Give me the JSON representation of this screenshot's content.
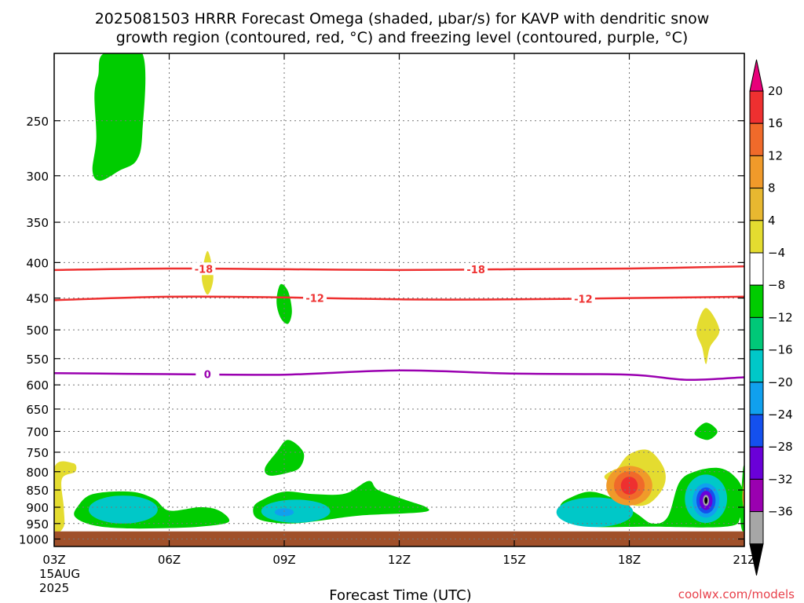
{
  "chart_data": {
    "type": "contour",
    "title_line1": "2025081503 HRRR Forecast Omega (shaded, µbar/s) for KAVP with dendritic snow",
    "title_line2": "growth region (contoured, red, °C) and freezing level (contoured, purple, °C)",
    "xlabel": "Forecast Time (UTC)",
    "credit": "coolwx.com/models",
    "x_ticks": [
      "03Z",
      "06Z",
      "09Z",
      "12Z",
      "15Z",
      "18Z",
      "21Z"
    ],
    "x_hours": [
      3,
      6,
      9,
      12,
      15,
      18,
      21
    ],
    "x_range": [
      3,
      21
    ],
    "date_line1": "15AUG",
    "date_line2": "2025",
    "y_ticks": [
      250,
      300,
      350,
      400,
      450,
      500,
      550,
      600,
      650,
      700,
      750,
      800,
      850,
      900,
      950,
      1000
    ],
    "y_range": [
      200,
      1025
    ],
    "y_scale": "log-pressure",
    "grid": true,
    "colorbar": {
      "labels": [
        "20",
        "16",
        "12",
        "8",
        "4",
        "−4",
        "−8",
        "−12",
        "−16",
        "−20",
        "−24",
        "−28",
        "−32",
        "−36"
      ],
      "colors": [
        "#e8007a",
        "#ee3030",
        "#f06a2a",
        "#f09a2a",
        "#e8b830",
        "#e4dc30",
        "#ffffff",
        "#00cc00",
        "#00c878",
        "#00c8c8",
        "#10a0ee",
        "#1450ee",
        "#6a00d8",
        "#9a00b0",
        "#a6a6a6",
        "#000000"
      ]
    },
    "isotherms": [
      {
        "label": "-18",
        "color": "#ee3030",
        "points": [
          [
            3,
            410
          ],
          [
            6,
            408
          ],
          [
            9,
            409
          ],
          [
            12,
            410
          ],
          [
            15,
            409
          ],
          [
            18,
            408
          ],
          [
            21,
            405
          ]
        ],
        "label_hours": [
          6.9,
          14.0
        ]
      },
      {
        "label": "-12",
        "color": "#ee3030",
        "points": [
          [
            3,
            453
          ],
          [
            6,
            448
          ],
          [
            9,
            449
          ],
          [
            12,
            452
          ],
          [
            15,
            452
          ],
          [
            18,
            450
          ],
          [
            21,
            448
          ]
        ],
        "label_hours": [
          9.8,
          16.8
        ]
      },
      {
        "label": "0",
        "color": "#9a00b0",
        "points": [
          [
            3,
            577
          ],
          [
            6,
            579
          ],
          [
            9,
            580
          ],
          [
            12,
            572
          ],
          [
            15,
            578
          ],
          [
            18,
            580
          ],
          [
            19.5,
            590
          ],
          [
            21,
            585
          ]
        ],
        "label_hours": [
          7.0
        ]
      }
    ],
    "omega_regions": [
      {
        "name": "green-upper",
        "color": "#00cc00",
        "points": [
          [
            4.3,
            200
          ],
          [
            5.3,
            200
          ],
          [
            5.3,
            260
          ],
          [
            5.15,
            285
          ],
          [
            4.7,
            295
          ],
          [
            4.2,
            305
          ],
          [
            4.0,
            295
          ],
          [
            4.1,
            265
          ],
          [
            4.05,
            230
          ],
          [
            4.15,
            215
          ]
        ]
      },
      {
        "name": "yellow-400",
        "color": "#e4dc30",
        "points": [
          [
            7.0,
            385
          ],
          [
            7.15,
            420
          ],
          [
            7.0,
            445
          ],
          [
            6.85,
            420
          ]
        ]
      },
      {
        "name": "green-450",
        "color": "#00cc00",
        "points": [
          [
            8.9,
            430
          ],
          [
            9.1,
            440
          ],
          [
            9.2,
            470
          ],
          [
            9.1,
            490
          ],
          [
            8.9,
            480
          ],
          [
            8.8,
            455
          ]
        ]
      },
      {
        "name": "yellow-500",
        "color": "#e4dc30",
        "points": [
          [
            20.0,
            465
          ],
          [
            20.35,
            500
          ],
          [
            20.1,
            530
          ],
          [
            20.0,
            560
          ],
          [
            19.9,
            530
          ],
          [
            19.75,
            500
          ]
        ]
      },
      {
        "name": "green-700",
        "color": "#00cc00",
        "points": [
          [
            20.0,
            680
          ],
          [
            20.3,
            700
          ],
          [
            20.05,
            720
          ],
          [
            19.7,
            705
          ]
        ]
      },
      {
        "name": "green-760",
        "color": "#00cc00",
        "points": [
          [
            8.5,
            790
          ],
          [
            8.8,
            750
          ],
          [
            9.1,
            720
          ],
          [
            9.5,
            750
          ],
          [
            9.4,
            790
          ],
          [
            9.0,
            805
          ],
          [
            8.6,
            810
          ]
        ]
      },
      {
        "name": "yellow-left",
        "color": "#e4dc30",
        "points": [
          [
            3,
            790
          ],
          [
            3.5,
            778
          ],
          [
            3.55,
            800
          ],
          [
            3.2,
            820
          ],
          [
            3.25,
            900
          ],
          [
            3.25,
            960
          ],
          [
            3,
            965
          ]
        ]
      },
      {
        "name": "green-left",
        "color": "#00cc00",
        "points": [
          [
            3.6,
            900
          ],
          [
            4.0,
            862
          ],
          [
            5.0,
            855
          ],
          [
            5.6,
            875
          ],
          [
            6.0,
            910
          ],
          [
            6.8,
            900
          ],
          [
            7.3,
            910
          ],
          [
            7.55,
            945
          ],
          [
            6.8,
            960
          ],
          [
            5.8,
            965
          ],
          [
            4.8,
            965
          ],
          [
            4.0,
            955
          ],
          [
            3.55,
            930
          ]
        ]
      },
      {
        "name": "green-9z",
        "color": "#00cc00",
        "points": [
          [
            8.2,
            900
          ],
          [
            8.4,
            880
          ],
          [
            9.0,
            855
          ],
          [
            9.8,
            862
          ],
          [
            10.6,
            860
          ],
          [
            11.2,
            825
          ],
          [
            11.45,
            850
          ],
          [
            12.2,
            880
          ],
          [
            12.7,
            900
          ],
          [
            12.6,
            915
          ],
          [
            11.0,
            925
          ],
          [
            10.0,
            940
          ],
          [
            9.2,
            950
          ],
          [
            8.6,
            945
          ],
          [
            8.25,
            930
          ]
        ]
      },
      {
        "name": "green-right",
        "color": "#00cc00",
        "points": [
          [
            16.2,
            895
          ],
          [
            16.5,
            870
          ],
          [
            17.0,
            855
          ],
          [
            17.6,
            875
          ],
          [
            18.2,
            920
          ],
          [
            18.6,
            950
          ],
          [
            19.0,
            930
          ],
          [
            19.3,
            830
          ],
          [
            19.7,
            800
          ],
          [
            20.3,
            790
          ],
          [
            20.7,
            808
          ],
          [
            20.95,
            850
          ],
          [
            20.9,
            930
          ],
          [
            20.5,
            960
          ],
          [
            18.5,
            960
          ],
          [
            17.0,
            960
          ],
          [
            16.3,
            940
          ]
        ]
      },
      {
        "name": "yellow-18z",
        "color": "#e4dc30",
        "points": [
          [
            17.7,
            790
          ],
          [
            18.0,
            755
          ],
          [
            18.5,
            745
          ],
          [
            18.9,
            790
          ],
          [
            18.9,
            840
          ],
          [
            18.5,
            890
          ],
          [
            18.0,
            890
          ],
          [
            17.7,
            845
          ],
          [
            17.35,
            815
          ],
          [
            17.6,
            795
          ]
        ]
      },
      {
        "name": "green-edge",
        "color": "#00cc00",
        "points": [
          [
            20.95,
            810
          ],
          [
            21,
            795
          ],
          [
            21,
            965
          ],
          [
            20.9,
            940
          ]
        ]
      },
      {
        "name": "yellow-edge",
        "color": "#e4dc30",
        "points": [
          [
            21,
            815
          ],
          [
            21,
            905
          ],
          [
            20.95,
            870
          ]
        ]
      }
    ],
    "omega_cores": [
      {
        "name": "teal-left",
        "color": "#00c8c8",
        "cx": 4.8,
        "cp": 907,
        "rx": 0.9,
        "rp": 42
      },
      {
        "name": "teal-9z",
        "color": "#00c8c8",
        "cx": 9.3,
        "cp": 912,
        "rx": 0.9,
        "rp": 35
      },
      {
        "name": "blue-9z",
        "color": "#10a0ee",
        "cx": 9.0,
        "cp": 915,
        "rx": 0.25,
        "rp": 12
      },
      {
        "name": "teal-16z",
        "color": "#00c8c8",
        "cx": 17.1,
        "cp": 915,
        "rx": 1.0,
        "rp": 45
      },
      {
        "name": "orange-18z",
        "color": "#f09a2a",
        "cx": 18.0,
        "cp": 838,
        "rx": 0.6,
        "rp": 55
      },
      {
        "name": "deep-orange-18z",
        "color": "#f06a2a",
        "cx": 18.0,
        "cp": 838,
        "rx": 0.4,
        "rp": 40
      },
      {
        "name": "red-18z",
        "color": "#ee3030",
        "cx": 18.0,
        "cp": 838,
        "rx": 0.22,
        "rp": 25
      },
      {
        "name": "teal-20z",
        "color": "#00c8c8",
        "cx": 20.0,
        "cp": 875,
        "rx": 0.55,
        "rp": 70
      },
      {
        "name": "blue-20z",
        "color": "#10a0ee",
        "cx": 20.0,
        "cp": 880,
        "rx": 0.35,
        "rp": 50
      },
      {
        "name": "dark-blue-20z",
        "color": "#1450ee",
        "cx": 20.0,
        "cp": 880,
        "rx": 0.25,
        "rp": 38
      },
      {
        "name": "purple-20z",
        "color": "#6a00d8",
        "cx": 20.0,
        "cp": 880,
        "rx": 0.17,
        "rp": 28
      },
      {
        "name": "gray-20z",
        "color": "#a6a6a6",
        "cx": 20.0,
        "cp": 880,
        "rx": 0.08,
        "rp": 16
      },
      {
        "name": "black-20z",
        "color": "#000000",
        "cx": 20.0,
        "cp": 880,
        "rx": 0.04,
        "rp": 10
      },
      {
        "name": "yellow-edge-core",
        "color": "#f09a2a",
        "cx": 21.0,
        "cp": 870,
        "rx": 0.05,
        "rp": 20
      }
    ],
    "ground": {
      "color": "#a0502a",
      "from_pressure": 975
    }
  }
}
